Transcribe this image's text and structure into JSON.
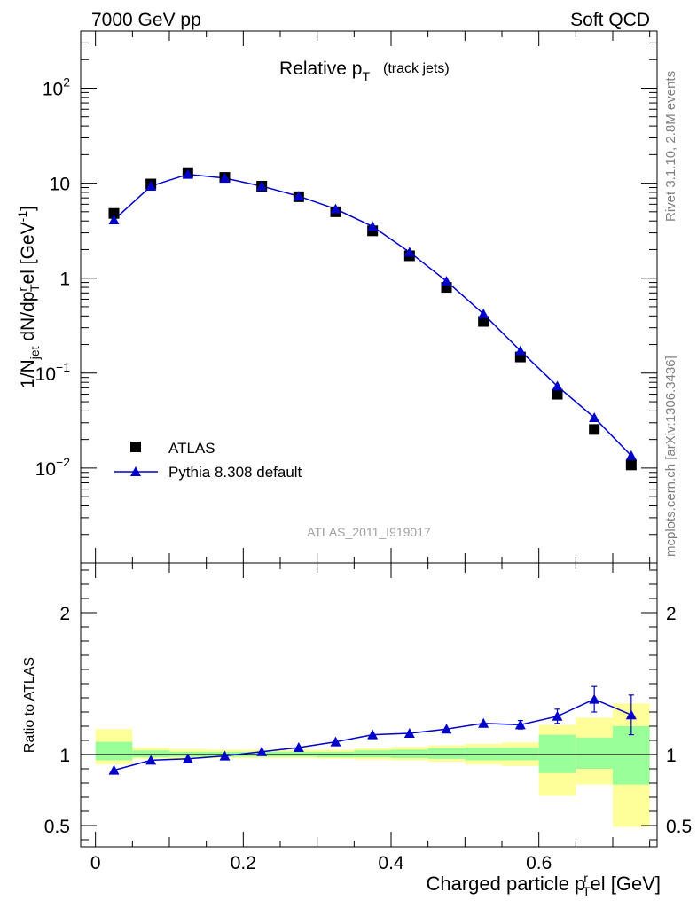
{
  "header": {
    "left": "7000 GeV pp",
    "right": "Soft QCD"
  },
  "side_labels": {
    "rivet": "Rivet 3.1.10,  2.8M events",
    "mcplots": "mcplots.cern.ch [arXiv:1306.3436]"
  },
  "watermark": "ATLAS_2011_I919017",
  "chart_data": {
    "type": "scatter",
    "title": "Relative p",
    "title_sub": "T",
    "title_suffix": "(track jets)",
    "xlabel": "Charged particle p",
    "xlabel_sub": "T",
    "xlabel_sup": "r",
    "xlabel_suffix": "el [GeV]",
    "ylabel": "1/N",
    "ylabel_sub1": "jet",
    "ylabel_mid": " dN/dp",
    "ylabel_sup2": "r",
    "ylabel_sub2": "T",
    "ylabel_tail": "el [GeV",
    "ylabel_sup3": "-1",
    "ylabel_end": "]",
    "ratio_ylabel": "Ratio to ATLAS",
    "xlim": [
      -0.02,
      0.76
    ],
    "ylim": [
      0.001,
      400
    ],
    "ratio_ylim": [
      0.35,
      2.35
    ],
    "yscale": "log",
    "x_ticks": [
      "0",
      "0.2",
      "0.4",
      "0.6"
    ],
    "x_tick_values": [
      0,
      0.2,
      0.4,
      0.6
    ],
    "y_ticks": [
      {
        "v": 0.01,
        "base": "10",
        "exp": "−2"
      },
      {
        "v": 0.1,
        "base": "10",
        "exp": "−1"
      },
      {
        "v": 1,
        "base": "1",
        "exp": ""
      },
      {
        "v": 10,
        "base": "10",
        "exp": ""
      },
      {
        "v": 100,
        "base": "10",
        "exp": "2"
      }
    ],
    "ratio_ticks": [
      "0.5",
      "1",
      "2"
    ],
    "ratio_tick_values": [
      0.5,
      1,
      2
    ],
    "legend_position": "lower-left",
    "bins": [
      0,
      0.05,
      0.1,
      0.15,
      0.2,
      0.25,
      0.3,
      0.35,
      0.4,
      0.45,
      0.5,
      0.55,
      0.6,
      0.65,
      0.7,
      0.75
    ],
    "series": [
      {
        "name": "ATLAS",
        "marker": "square",
        "color": "#000000",
        "x": [
          0.025,
          0.075,
          0.125,
          0.175,
          0.225,
          0.275,
          0.325,
          0.375,
          0.425,
          0.475,
          0.525,
          0.575,
          0.625,
          0.675,
          0.725
        ],
        "y": [
          4.8,
          9.8,
          12.9,
          11.5,
          9.3,
          7.2,
          5.0,
          3.15,
          1.72,
          0.8,
          0.35,
          0.148,
          0.06,
          0.0255,
          0.0108
        ]
      },
      {
        "name": "Pythia 8.308 default",
        "marker": "triangle",
        "color": "#0000cc",
        "x": [
          0.025,
          0.075,
          0.125,
          0.175,
          0.225,
          0.275,
          0.325,
          0.375,
          0.425,
          0.475,
          0.525,
          0.575,
          0.625,
          0.675,
          0.725
        ],
        "y": [
          4.1,
          9.3,
          12.4,
          11.3,
          9.3,
          7.3,
          5.35,
          3.5,
          1.88,
          0.93,
          0.42,
          0.172,
          0.073,
          0.034,
          0.0135
        ],
        "ratio": [
          0.89,
          0.96,
          0.97,
          0.99,
          1.02,
          1.05,
          1.09,
          1.14,
          1.15,
          1.18,
          1.22,
          1.21,
          1.27,
          1.39,
          1.28
        ],
        "ratio_err": [
          0,
          0,
          0,
          0,
          0,
          0,
          0,
          0,
          0,
          0,
          0,
          0.03,
          0.05,
          0.09,
          0.14
        ]
      }
    ],
    "ratio_band_inner": {
      "color": "#99ff99",
      "low": [
        0.96,
        0.98,
        0.985,
        0.985,
        0.985,
        0.985,
        0.98,
        0.98,
        0.975,
        0.97,
        0.96,
        0.96,
        0.87,
        0.9,
        0.79
      ],
      "high": [
        1.09,
        1.03,
        1.02,
        1.02,
        1.02,
        1.02,
        1.02,
        1.03,
        1.035,
        1.045,
        1.05,
        1.05,
        1.14,
        1.12,
        1.2
      ]
    },
    "ratio_band_outer": {
      "color": "#ffff99",
      "low": [
        0.93,
        0.97,
        0.97,
        0.975,
        0.975,
        0.975,
        0.97,
        0.965,
        0.96,
        0.95,
        0.93,
        0.92,
        0.71,
        0.79,
        0.49
      ],
      "high": [
        1.18,
        1.05,
        1.04,
        1.035,
        1.035,
        1.035,
        1.035,
        1.045,
        1.055,
        1.065,
        1.075,
        1.085,
        1.21,
        1.26,
        1.36
      ]
    }
  }
}
